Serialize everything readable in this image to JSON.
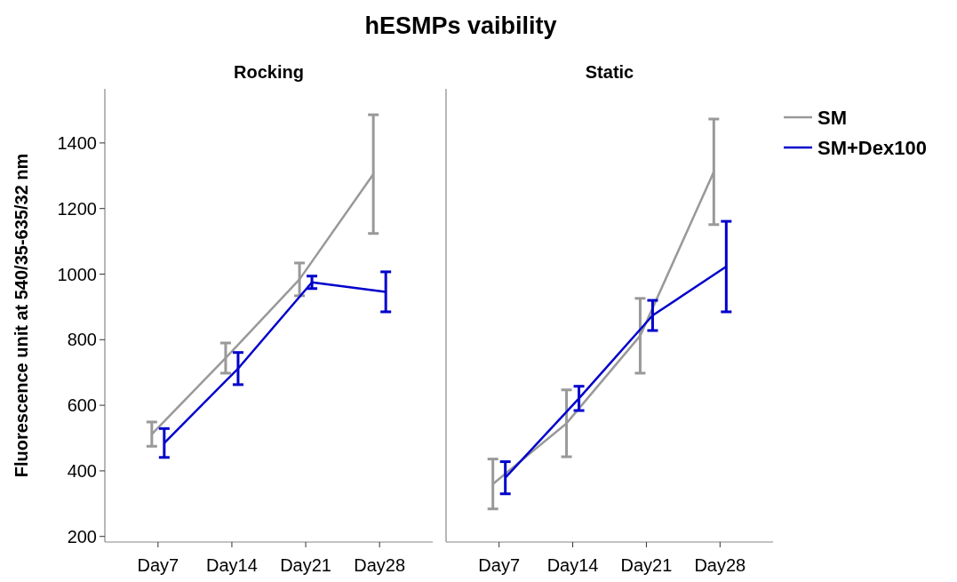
{
  "chart_data": [
    {
      "type": "line",
      "title": "hESMPs vaibility",
      "subtitle": "Rocking",
      "ylabel": "Fluorescence unit at 540/35-635/32 nm",
      "categories": [
        "Day7",
        "Day14",
        "Day21",
        "Day28"
      ],
      "ylim": [
        183,
        1565
      ],
      "yticks": [
        200,
        400,
        600,
        800,
        1000,
        1200,
        1400
      ],
      "grid": false,
      "marker": "none",
      "line_style": "solid",
      "series": [
        {
          "color": "#999999",
          "values": [
            512,
            744,
            984,
            1305
          ],
          "errors": [
            37,
            46,
            50,
            181
          ]
        },
        {
          "color": "#0000cc",
          "values": [
            485,
            712,
            975,
            946
          ],
          "errors": [
            44,
            49,
            19,
            61
          ]
        }
      ]
    },
    {
      "type": "line",
      "subtitle": "Static",
      "categories": [
        "Day7",
        "Day14",
        "Day21",
        "Day28"
      ],
      "ylim": [
        183,
        1565
      ],
      "tick_labels": "x",
      "grid": false,
      "legend": "right",
      "marker": "none",
      "line_style": "solid",
      "series": [
        {
          "name": "SM",
          "color": "#999999",
          "values": [
            360,
            545,
            812,
            1312
          ],
          "errors": [
            76,
            102,
            114,
            161
          ]
        },
        {
          "name": "SM+Dex100",
          "color": "#0000cc",
          "values": [
            379,
            621,
            874,
            1023
          ],
          "errors": [
            49,
            37,
            46,
            138
          ]
        }
      ]
    }
  ]
}
